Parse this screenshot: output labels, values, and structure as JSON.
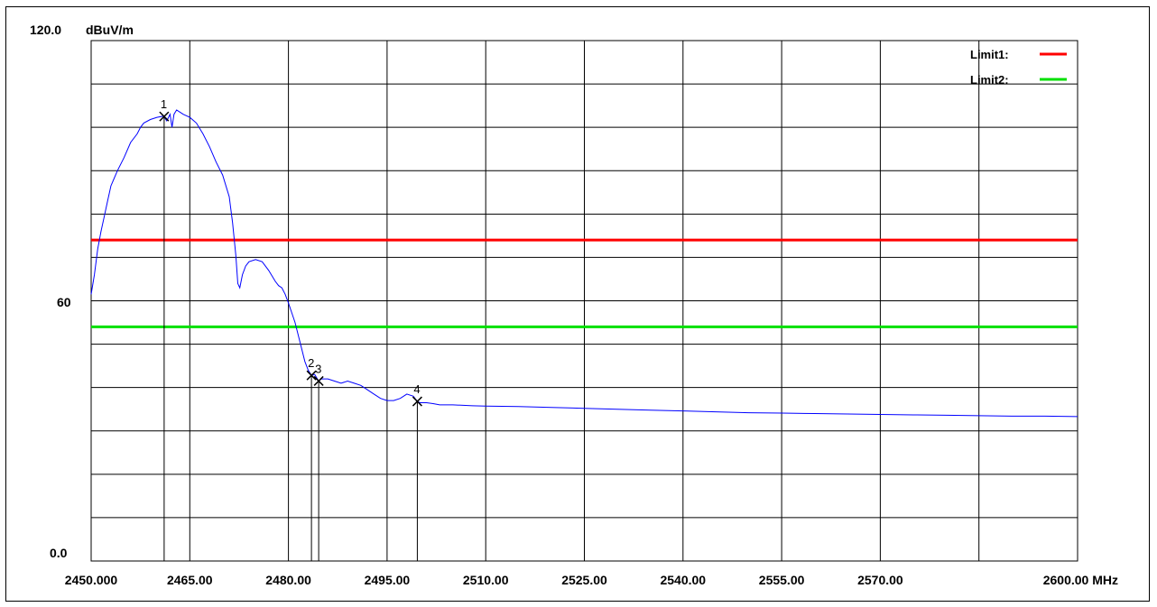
{
  "chart_data": {
    "type": "line",
    "y_top_label": "120.0",
    "y_unit": "dBuV/m",
    "y_mid_label": "60",
    "y_bottom_label": "0.0",
    "ylim": [
      0,
      120
    ],
    "xlim": [
      2450,
      2600
    ],
    "x_unit": "MHz",
    "x_tick_labels": [
      {
        "x": 2450,
        "label": "2450.000"
      },
      {
        "x": 2465,
        "label": "2465.00"
      },
      {
        "x": 2480,
        "label": "2480.00"
      },
      {
        "x": 2495,
        "label": "2495.00"
      },
      {
        "x": 2510,
        "label": "2510.00"
      },
      {
        "x": 2525,
        "label": "2525.00"
      },
      {
        "x": 2540,
        "label": "2540.00"
      },
      {
        "x": 2555,
        "label": "2555.00"
      },
      {
        "x": 2570,
        "label": "2570.00"
      },
      {
        "x": 2600,
        "label": "2600.00 MHz"
      }
    ],
    "limits": [
      {
        "name": "Limit1:",
        "value": 74,
        "color": "#ff0000"
      },
      {
        "name": "Limit2:",
        "value": 54,
        "color": "#00e000"
      }
    ],
    "markers": [
      {
        "label": "1",
        "x": 2461.1,
        "y": 102.5
      },
      {
        "label": "2",
        "x": 2483.5,
        "y": 42.8
      },
      {
        "label": "3",
        "x": 2484.6,
        "y": 41.5
      },
      {
        "label": "4",
        "x": 2499.6,
        "y": 36.8
      }
    ],
    "series": [
      {
        "color": "#0000ff",
        "x": [
          2450.0,
          2450.5,
          2451.0,
          2451.5,
          2452.0,
          2452.5,
          2453.0,
          2454.0,
          2455.0,
          2456.0,
          2457.0,
          2457.5,
          2458.0,
          2459.0,
          2460.0,
          2461.0,
          2461.5,
          2462.0,
          2462.3,
          2462.6,
          2463.0,
          2464.0,
          2465.0,
          2466.0,
          2467.0,
          2468.0,
          2469.0,
          2470.0,
          2471.0,
          2471.5,
          2472.0,
          2472.3,
          2472.6,
          2473.0,
          2473.5,
          2474.0,
          2475.0,
          2476.0,
          2477.0,
          2478.0,
          2478.5,
          2479.0,
          2479.5,
          2480.0,
          2481.0,
          2482.0,
          2482.5,
          2483.0,
          2483.5,
          2484.0,
          2484.6,
          2485.0,
          2486.0,
          2487.0,
          2488.0,
          2489.0,
          2490.0,
          2491.0,
          2492.0,
          2493.0,
          2494.0,
          2495.0,
          2496.0,
          2497.0,
          2498.0,
          2499.0,
          2499.6,
          2500.0,
          2501.0,
          2502.0,
          2503.0,
          2505.0,
          2508.0,
          2510.0,
          2515.0,
          2520.0,
          2525.0,
          2530.0,
          2535.0,
          2540.0,
          2545.0,
          2550.0,
          2555.0,
          2560.0,
          2565.0,
          2570.0,
          2575.0,
          2580.0,
          2585.0,
          2590.0,
          2595.0,
          2600.0
        ],
        "y": [
          61.5,
          66.0,
          72.0,
          76.0,
          79.5,
          83.0,
          86.5,
          90.0,
          93.0,
          96.5,
          98.5,
          100.0,
          101.0,
          101.8,
          102.3,
          102.6,
          101.5,
          103.0,
          100.0,
          103.0,
          104.0,
          103.0,
          102.3,
          101.0,
          98.5,
          95.5,
          92.0,
          89.0,
          84.0,
          78.0,
          70.5,
          64.0,
          63.0,
          66.0,
          68.0,
          69.0,
          69.5,
          69.0,
          67.0,
          64.5,
          63.5,
          63.0,
          61.5,
          59.5,
          55.0,
          49.0,
          46.0,
          44.0,
          42.8,
          43.0,
          41.5,
          42.0,
          42.0,
          41.5,
          41.0,
          41.5,
          41.0,
          40.5,
          39.5,
          38.5,
          37.5,
          37.0,
          37.0,
          37.5,
          38.5,
          38.0,
          36.8,
          36.5,
          36.5,
          36.3,
          36.0,
          36.0,
          35.8,
          35.7,
          35.6,
          35.4,
          35.2,
          35.0,
          34.8,
          34.6,
          34.4,
          34.2,
          34.1,
          34.0,
          33.9,
          33.8,
          33.7,
          33.6,
          33.5,
          33.4,
          33.4,
          33.3
        ]
      }
    ],
    "grid": true,
    "legend_position": "top-right"
  }
}
